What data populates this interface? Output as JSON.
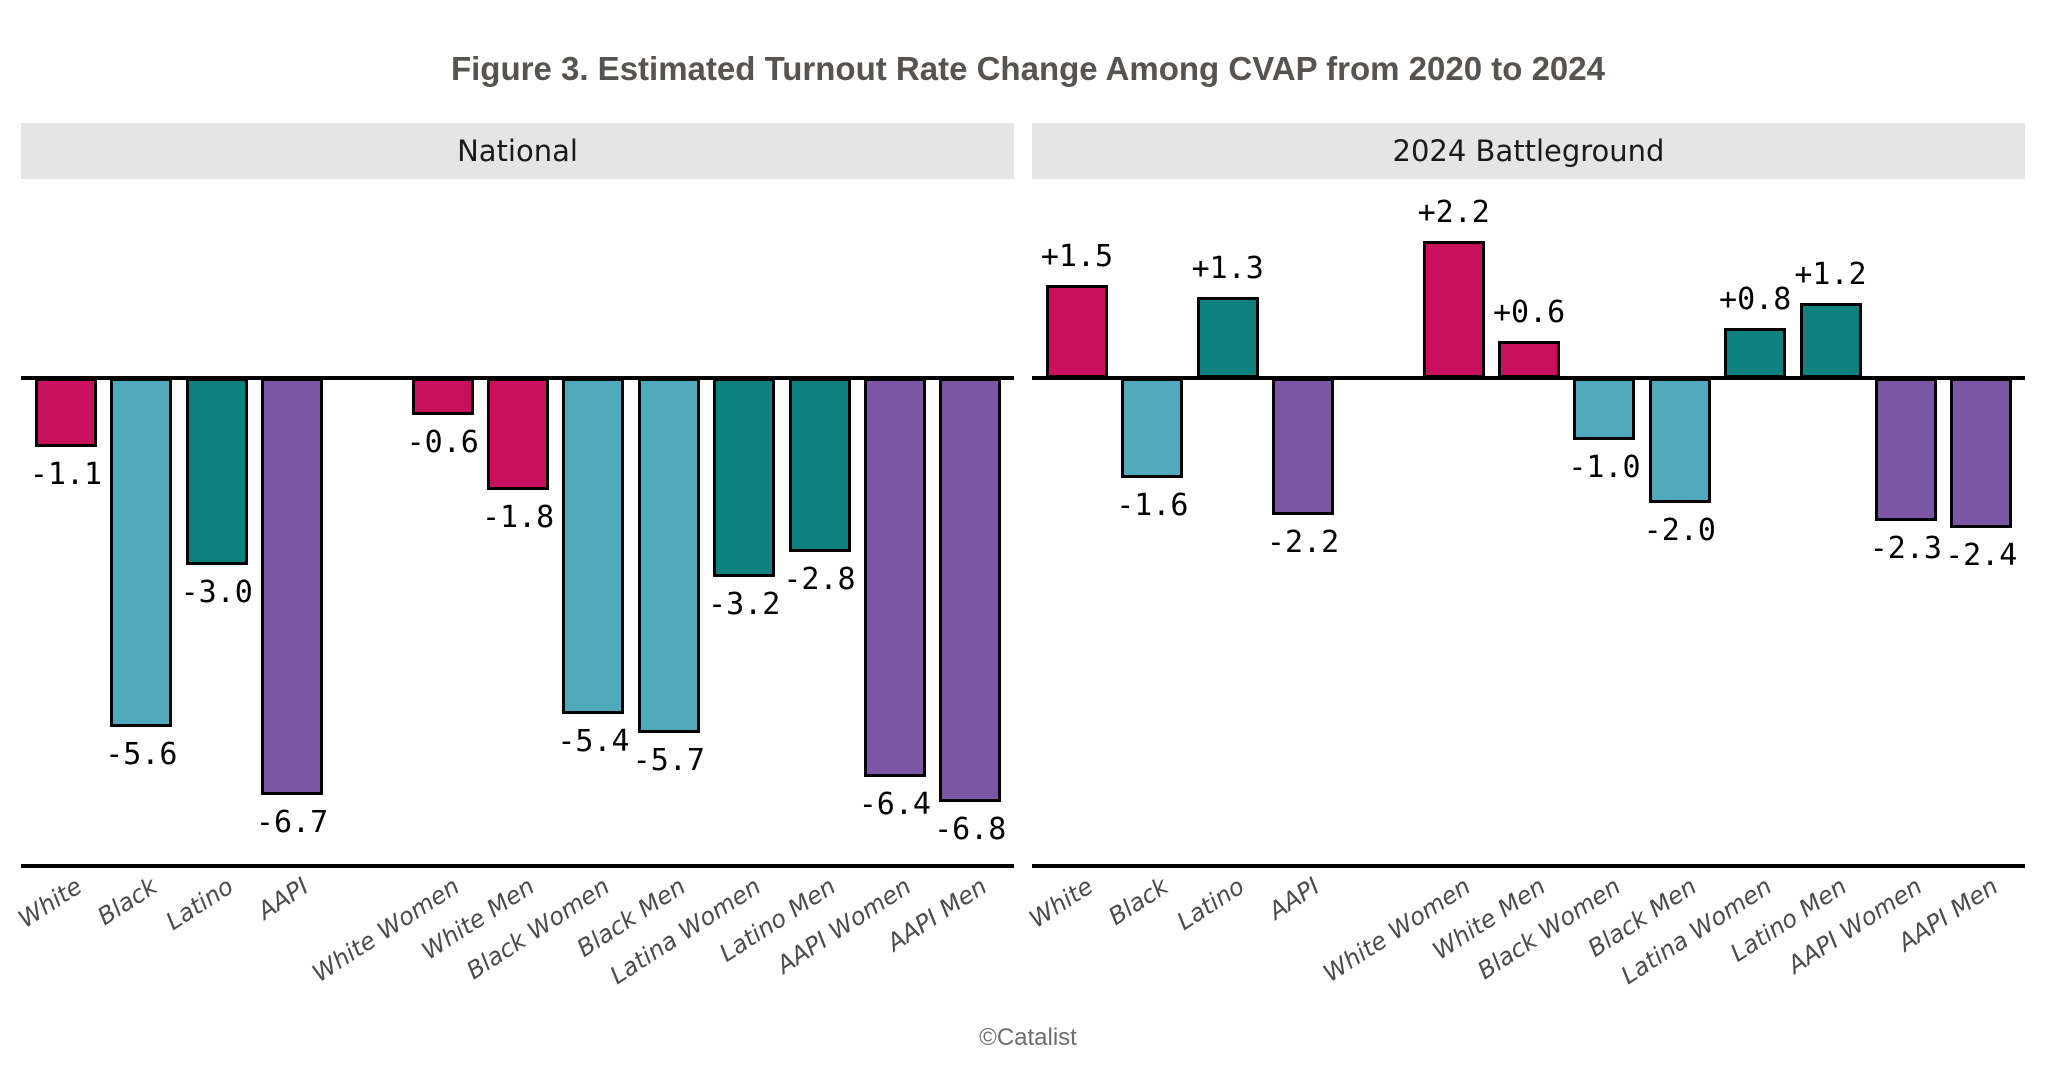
{
  "figure": {
    "title": "Figure 3. Estimated Turnout Rate Change Among CVAP from 2020 to 2024",
    "credit": "©Catalist"
  },
  "colors": {
    "pink": "#C8105E",
    "light_teal": "#4FA8BC",
    "dark_teal": "#0D8080",
    "purple": "#7B56A5",
    "bar_border": "#000000",
    "axis": "#000000",
    "panel_header_bg": "#E5E5E5",
    "title_text": "#57534E",
    "axis_label_text": "#4B4B4B",
    "value_label_text": "#000000",
    "credit_text": "#6D6D6D"
  },
  "chart_data": [
    {
      "type": "bar",
      "panel": "National",
      "categories": [
        "White",
        "Black",
        "Latino",
        "AAPI",
        "White Women",
        "White Men",
        "Black Women",
        "Black Men",
        "Latina Women",
        "Latino Men",
        "AAPI Women",
        "AAPI Men"
      ],
      "values": [
        -1.1,
        -5.6,
        -3.0,
        -6.7,
        -0.6,
        -1.8,
        -5.4,
        -5.7,
        -3.2,
        -2.8,
        -6.4,
        -6.8
      ],
      "labels": [
        "-1.1",
        "-5.6",
        "-3.0",
        "-6.7",
        "-0.6",
        "-1.8",
        "-5.4",
        "-5.7",
        "-3.2",
        "-2.8",
        "-6.4",
        "-6.8"
      ],
      "colors": [
        "pink",
        "light_teal",
        "dark_teal",
        "purple",
        "pink",
        "pink",
        "light_teal",
        "light_teal",
        "dark_teal",
        "dark_teal",
        "purple",
        "purple"
      ],
      "group_break_after": 4,
      "xlabel": "",
      "ylabel": "",
      "ylim": [
        -7.9,
        3.2
      ],
      "grid": false,
      "legend": false
    },
    {
      "type": "bar",
      "panel": "2024 Battleground",
      "categories": [
        "White",
        "Black",
        "Latino",
        "AAPI",
        "White Women",
        "White Men",
        "Black Women",
        "Black Men",
        "Latina Women",
        "Latino Men",
        "AAPI Women",
        "AAPI Men"
      ],
      "values": [
        1.5,
        -1.6,
        1.3,
        -2.2,
        2.2,
        0.6,
        -1.0,
        -2.0,
        0.8,
        1.2,
        -2.3,
        -2.4
      ],
      "labels": [
        "+1.5",
        "-1.6",
        "+1.3",
        "-2.2",
        "+2.2",
        "+0.6",
        "-1.0",
        "-2.0",
        "+0.8",
        "+1.2",
        "-2.3",
        "-2.4"
      ],
      "colors": [
        "pink",
        "light_teal",
        "dark_teal",
        "purple",
        "pink",
        "pink",
        "light_teal",
        "light_teal",
        "dark_teal",
        "dark_teal",
        "purple",
        "purple"
      ],
      "group_break_after": 4,
      "xlabel": "",
      "ylabel": "",
      "ylim": [
        -7.9,
        3.2
      ],
      "grid": false,
      "legend": false
    }
  ]
}
